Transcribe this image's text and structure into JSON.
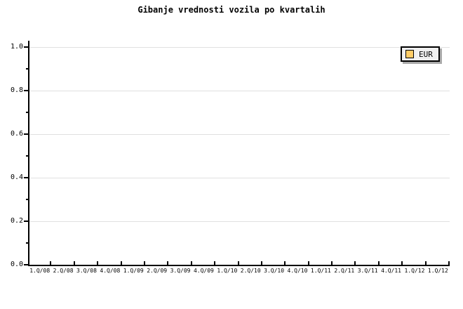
{
  "chart_data": {
    "type": "line",
    "title": "Gibanje vrednosti vozila po kvartalih",
    "categories": [
      "1.Q/08",
      "2.Q/08",
      "3.Q/08",
      "4.Q/08",
      "1.Q/09",
      "2.Q/09",
      "3.Q/09",
      "4.Q/09",
      "1.Q/10",
      "2.Q/10",
      "3.Q/10",
      "4.Q/10",
      "1.Q/11",
      "2.Q/11",
      "3.Q/11",
      "4.Q/11",
      "1.Q/12",
      "1.Q/12"
    ],
    "series": [
      {
        "name": "EUR",
        "color": "#ffcc66",
        "values": []
      }
    ],
    "ylim": [
      0.0,
      1.0
    ],
    "y_tick_labels": [
      "0.0",
      "0.2",
      "0.4",
      "0.6",
      "0.8",
      "1.0"
    ],
    "y_minor_tick_step": 0.1,
    "grid": "horizontal-only",
    "legend_position": "top-right"
  },
  "legend": {
    "entries": [
      {
        "label": "EUR",
        "swatch_color": "#ffcc66"
      }
    ]
  },
  "colors": {
    "background": "#ffffff",
    "axis": "#000000",
    "gridline": "#e0e0e0",
    "legend_bg": "#f0f0f0",
    "legend_border": "#000000",
    "legend_shadow": "#aaaaaa",
    "swatch": "#ffcc66",
    "text": "#000000"
  }
}
